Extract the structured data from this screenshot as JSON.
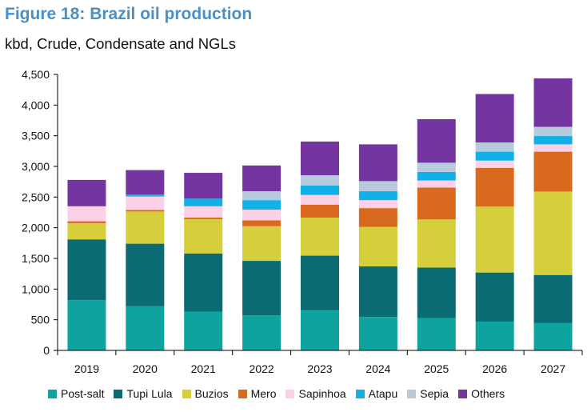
{
  "figure": {
    "title": "Figure 18: Brazil oil production",
    "subtitle": "kbd, Crude, Condensate and NGLs"
  },
  "chart_data": {
    "type": "bar",
    "stacked": true,
    "title": "Figure 18: Brazil oil production",
    "subtitle": "kbd, Crude, Condensate and NGLs",
    "xlabel": "",
    "ylabel": "",
    "ylim": [
      0,
      4500
    ],
    "yticks": [
      0,
      500,
      1000,
      1500,
      2000,
      2500,
      3000,
      3500,
      4000,
      4500
    ],
    "ytick_labels": [
      "0",
      "500",
      "1,000",
      "1,500",
      "2,000",
      "2,500",
      "3,000",
      "3,500",
      "4,000",
      "4,500"
    ],
    "grid": false,
    "legend_position": "bottom",
    "categories": [
      "2019",
      "2020",
      "2021",
      "2022",
      "2023",
      "2024",
      "2025",
      "2026",
      "2027"
    ],
    "series": [
      {
        "name": "Post-salt",
        "color": "#0fa3a0",
        "values": [
          820,
          720,
          630,
          570,
          650,
          545,
          525,
          470,
          445
        ]
      },
      {
        "name": "Tupi Lula",
        "color": "#0b6b73",
        "values": [
          990,
          1020,
          950,
          890,
          895,
          825,
          825,
          800,
          785
        ]
      },
      {
        "name": "Buzios",
        "color": "#d4cf3a",
        "values": [
          265,
          525,
          560,
          565,
          620,
          645,
          785,
          1075,
          1360
        ]
      },
      {
        "name": "Mero",
        "color": "#d9691f",
        "values": [
          30,
          25,
          25,
          95,
          210,
          305,
          520,
          630,
          650
        ]
      },
      {
        "name": "Sapinhoa",
        "color": "#fcd0e6",
        "values": [
          245,
          220,
          185,
          175,
          160,
          130,
          115,
          120,
          120
        ]
      },
      {
        "name": "Atapu",
        "color": "#12b0e8",
        "values": [
          0,
          30,
          125,
          155,
          155,
          145,
          140,
          145,
          135
        ]
      },
      {
        "name": "Sepia",
        "color": "#b7cbdc",
        "values": [
          0,
          0,
          0,
          145,
          165,
          165,
          150,
          150,
          150
        ]
      },
      {
        "name": "Others",
        "color": "#7535a0",
        "values": [
          430,
          400,
          420,
          420,
          550,
          600,
          710,
          790,
          790
        ]
      }
    ]
  }
}
